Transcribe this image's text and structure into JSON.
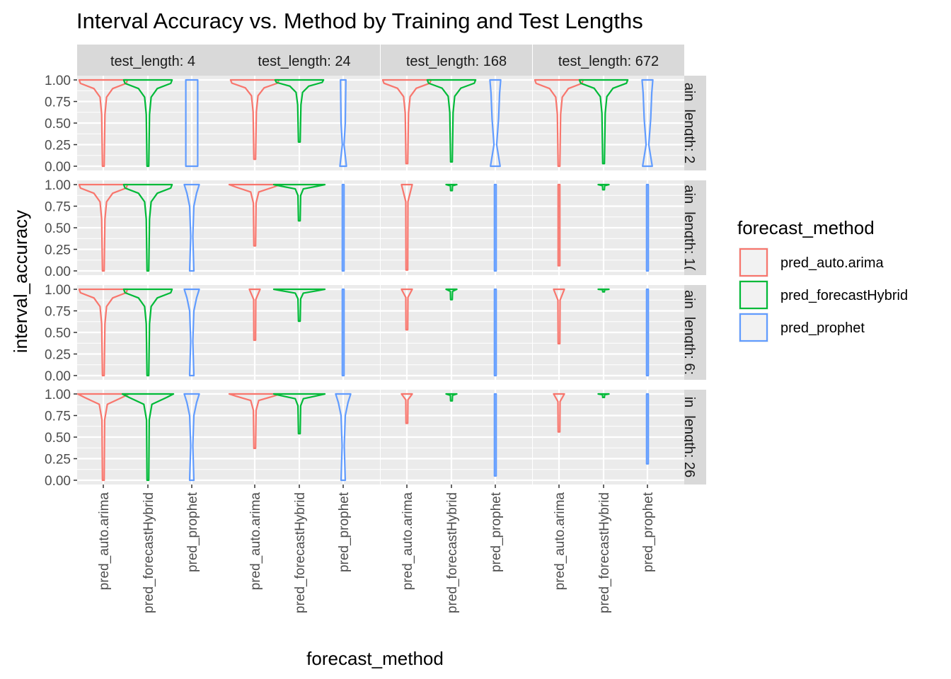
{
  "chart_data": {
    "type": "violin",
    "title": "Interval Accuracy vs. Method by Training and Test Lengths",
    "xlabel": "forecast_method",
    "ylabel": "interval_accuracy",
    "ylim": [
      0,
      1
    ],
    "yticks": [
      "0.00",
      "0.25",
      "0.50",
      "0.75",
      "1.00"
    ],
    "categories": [
      "pred_auto.arima",
      "pred_forecastHybrid",
      "pred_prophet"
    ],
    "col_facets": [
      "test_length: 4",
      "test_length: 24",
      "test_length: 168",
      "test_length: 672"
    ],
    "row_facets": [
      "ain_length: 2",
      "ain_length: 1(",
      "ain_length: 6:",
      "in_length: 26"
    ],
    "legend": {
      "title": "forecast_method",
      "position": "right",
      "entries": [
        "pred_auto.arima",
        "pred_forecastHybrid",
        "pred_prophet"
      ]
    },
    "colors": {
      "pred_auto.arima": "#F8766D",
      "pred_forecastHybrid": "#00BA38",
      "pred_prophet": "#619CFF",
      "panel_bg": "#EBEBEB",
      "strip_bg": "#D9D9D9",
      "grid": "#FFFFFF"
    },
    "grid": true,
    "panels": [
      [
        [
          {
            "min": 0,
            "max": 1,
            "shape": "wide-top"
          },
          {
            "min": 0,
            "max": 1,
            "shape": "wide-top"
          },
          {
            "min": 0,
            "max": 1,
            "shape": "box"
          }
        ],
        [
          {
            "min": 0.08,
            "max": 1,
            "shape": "wide-top"
          },
          {
            "min": 0.28,
            "max": 1,
            "shape": "wide-top"
          },
          {
            "min": 0,
            "max": 1,
            "shape": "box-narrow"
          }
        ],
        [
          {
            "min": 0.03,
            "max": 1,
            "shape": "wide-top"
          },
          {
            "min": 0.05,
            "max": 1,
            "shape": "wide-top"
          },
          {
            "min": 0,
            "max": 1,
            "shape": "spindle"
          }
        ],
        [
          {
            "min": 0,
            "max": 1,
            "shape": "wide-top"
          },
          {
            "min": 0.03,
            "max": 1,
            "shape": "wide-top"
          },
          {
            "min": 0,
            "max": 1,
            "shape": "spindle"
          }
        ]
      ],
      [
        [
          {
            "min": 0,
            "max": 1,
            "shape": "wide-top"
          },
          {
            "min": 0,
            "max": 1,
            "shape": "wide-top"
          },
          {
            "min": 0,
            "max": 1,
            "shape": "taper"
          }
        ],
        [
          {
            "min": 0.29,
            "max": 1,
            "shape": "flat-top"
          },
          {
            "min": 0.58,
            "max": 1,
            "shape": "flat-top"
          },
          {
            "min": 0,
            "max": 1,
            "shape": "line"
          }
        ],
        [
          {
            "min": 0.01,
            "max": 1,
            "shape": "tiny"
          },
          {
            "min": 0.93,
            "max": 1,
            "shape": "tiny"
          },
          {
            "min": 0,
            "max": 1,
            "shape": "line"
          }
        ],
        [
          {
            "min": 0.06,
            "max": 1,
            "shape": "line"
          },
          {
            "min": 0.94,
            "max": 1,
            "shape": "tiny"
          },
          {
            "min": 0,
            "max": 1,
            "shape": "line"
          }
        ]
      ],
      [
        [
          {
            "min": 0,
            "max": 1,
            "shape": "wide-top"
          },
          {
            "min": 0,
            "max": 1,
            "shape": "wide-top"
          },
          {
            "min": 0,
            "max": 1,
            "shape": "taper"
          }
        ],
        [
          {
            "min": 0.41,
            "max": 1,
            "shape": "tiny"
          },
          {
            "min": 0.63,
            "max": 1,
            "shape": "flat-top"
          },
          {
            "min": 0,
            "max": 1,
            "shape": "line"
          }
        ],
        [
          {
            "min": 0.53,
            "max": 1,
            "shape": "tiny"
          },
          {
            "min": 0.88,
            "max": 1,
            "shape": "tiny"
          },
          {
            "min": 0,
            "max": 1,
            "shape": "line"
          }
        ],
        [
          {
            "min": 0.37,
            "max": 1,
            "shape": "tiny"
          },
          {
            "min": 0.97,
            "max": 1,
            "shape": "tiny"
          },
          {
            "min": 0,
            "max": 1,
            "shape": "line"
          }
        ]
      ],
      [
        [
          {
            "min": 0,
            "max": 1,
            "shape": "flat-top"
          },
          {
            "min": 0,
            "max": 1,
            "shape": "flat-top"
          },
          {
            "min": 0,
            "max": 1,
            "shape": "taper"
          }
        ],
        [
          {
            "min": 0.37,
            "max": 1,
            "shape": "flat-top"
          },
          {
            "min": 0.54,
            "max": 1,
            "shape": "flat-top"
          },
          {
            "min": 0,
            "max": 1,
            "shape": "taper"
          }
        ],
        [
          {
            "min": 0.66,
            "max": 1,
            "shape": "tiny"
          },
          {
            "min": 0.92,
            "max": 1,
            "shape": "tiny"
          },
          {
            "min": 0.05,
            "max": 1,
            "shape": "line"
          }
        ],
        [
          {
            "min": 0.56,
            "max": 1,
            "shape": "tiny"
          },
          {
            "min": 0.96,
            "max": 1,
            "shape": "tiny"
          },
          {
            "min": 0.19,
            "max": 1,
            "shape": "line"
          }
        ]
      ]
    ]
  }
}
